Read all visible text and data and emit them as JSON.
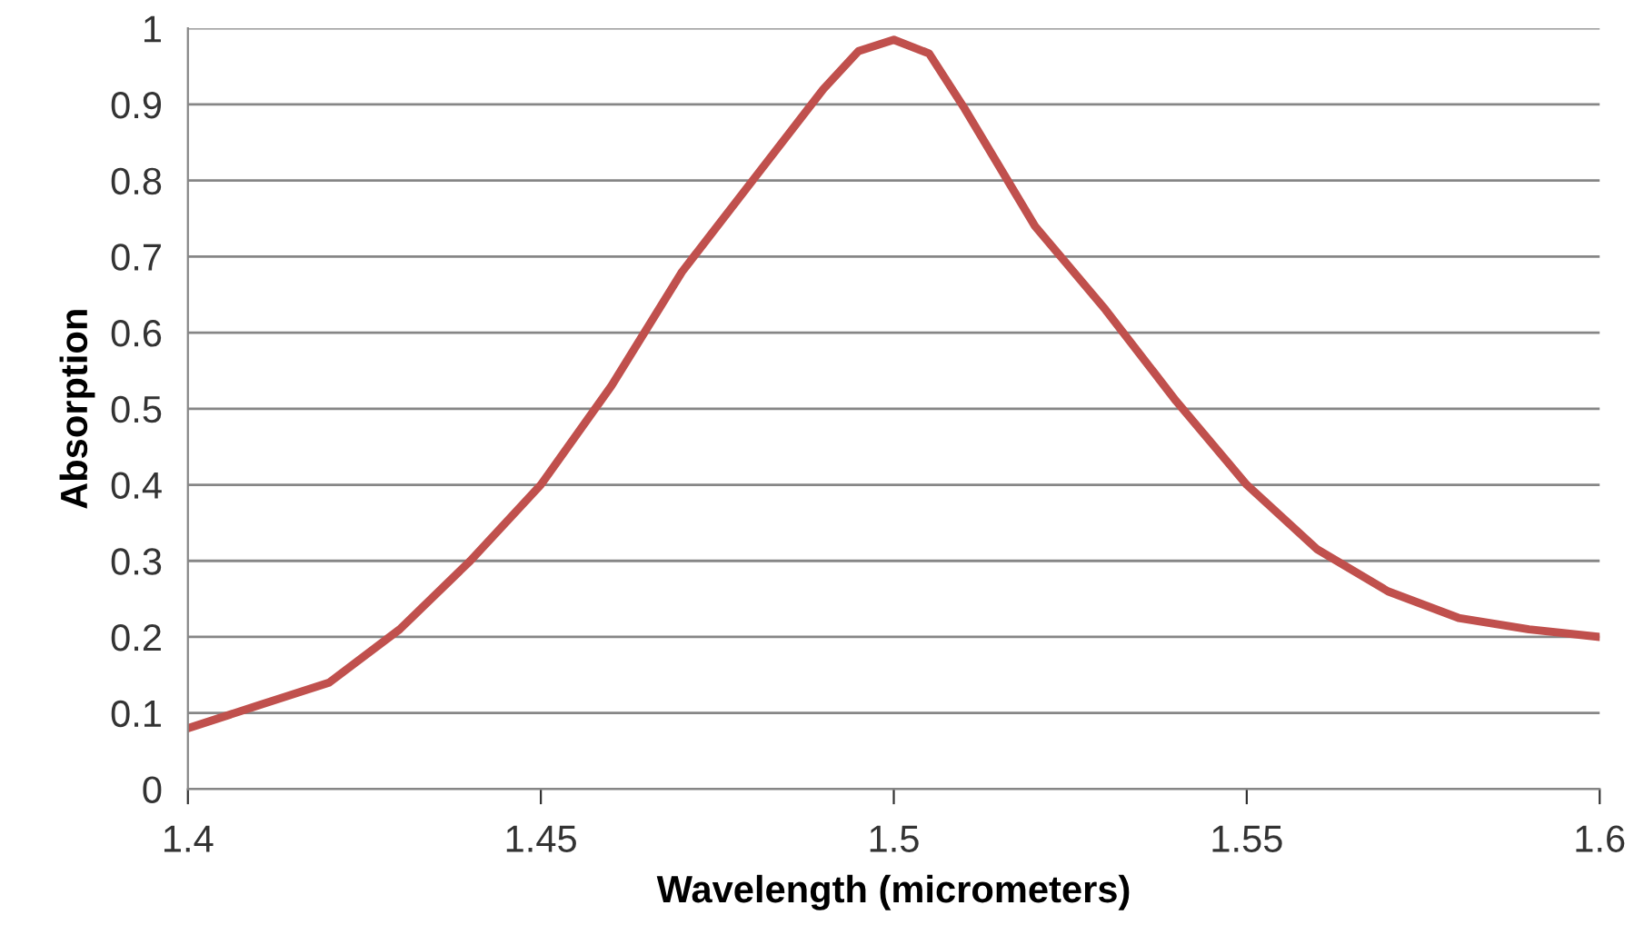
{
  "chart_data": {
    "type": "line",
    "xlabel": "Wavelength (micrometers)",
    "ylabel": "Absorption",
    "x": [
      1.4,
      1.41,
      1.42,
      1.43,
      1.44,
      1.45,
      1.46,
      1.47,
      1.48,
      1.49,
      1.495,
      1.5,
      1.505,
      1.51,
      1.52,
      1.53,
      1.54,
      1.55,
      1.56,
      1.57,
      1.58,
      1.59,
      1.6
    ],
    "series": [
      {
        "color": "#c0504d",
        "values": [
          0.08,
          0.11,
          0.14,
          0.21,
          0.3,
          0.4,
          0.53,
          0.68,
          0.8,
          0.92,
          0.97,
          0.985,
          0.967,
          0.895,
          0.74,
          0.63,
          0.51,
          0.4,
          0.315,
          0.26,
          0.225,
          0.21,
          0.2
        ]
      }
    ],
    "xlim": [
      1.4,
      1.6
    ],
    "xticks": [
      1.4,
      1.45,
      1.5,
      1.55,
      1.6
    ],
    "ylim": [
      0,
      1
    ],
    "yticks": [
      0,
      0.1,
      0.2,
      0.3,
      0.4,
      0.5,
      0.6,
      0.7,
      0.8,
      0.9,
      1
    ],
    "grid": "y",
    "marker": "none",
    "line_style": "solid",
    "legend": false
  }
}
